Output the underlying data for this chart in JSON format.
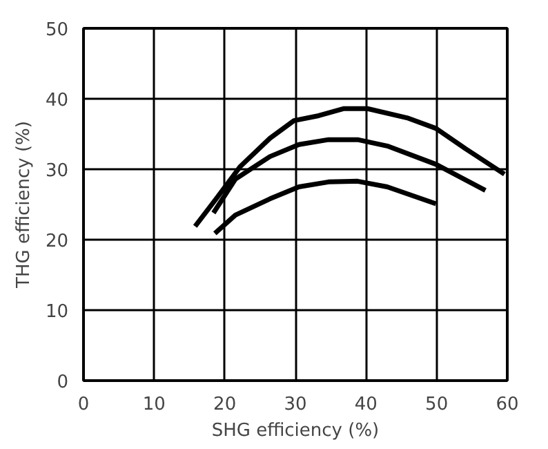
{
  "chart_data": {
    "type": "line",
    "xlabel": "SHG efficiency (%)",
    "ylabel": "THG efficiency (%)",
    "xlim": [
      0,
      60
    ],
    "ylim": [
      0,
      50
    ],
    "xticks": [
      0,
      10,
      20,
      30,
      40,
      50,
      60
    ],
    "yticks": [
      0,
      10,
      20,
      30,
      40,
      50
    ],
    "grid": true,
    "marker": "none",
    "line_style": "solid",
    "series": [
      {
        "color": "#000000",
        "x": [
          15.8,
          18.7,
          22.2,
          26.4,
          29.8,
          33.3,
          36.8,
          40.2,
          45.8,
          49.9,
          54.1,
          59.6
        ],
        "values": [
          21.9,
          25.7,
          30.4,
          34.4,
          36.9,
          37.6,
          38.6,
          38.6,
          37.3,
          35.8,
          32.9,
          29.3
        ]
      },
      {
        "color": "#000000",
        "x": [
          18.4,
          21.5,
          26.4,
          30.5,
          34.7,
          38.8,
          43.0,
          49.9,
          56.9
        ],
        "values": [
          23.8,
          28.6,
          31.8,
          33.5,
          34.2,
          34.2,
          33.3,
          30.7,
          27.0
        ]
      },
      {
        "color": "#000000",
        "x": [
          18.6,
          21.5,
          26.4,
          30.5,
          34.7,
          38.8,
          43.0,
          49.9
        ],
        "values": [
          20.9,
          23.5,
          25.8,
          27.5,
          28.2,
          28.3,
          27.5,
          25.1
        ]
      }
    ]
  }
}
